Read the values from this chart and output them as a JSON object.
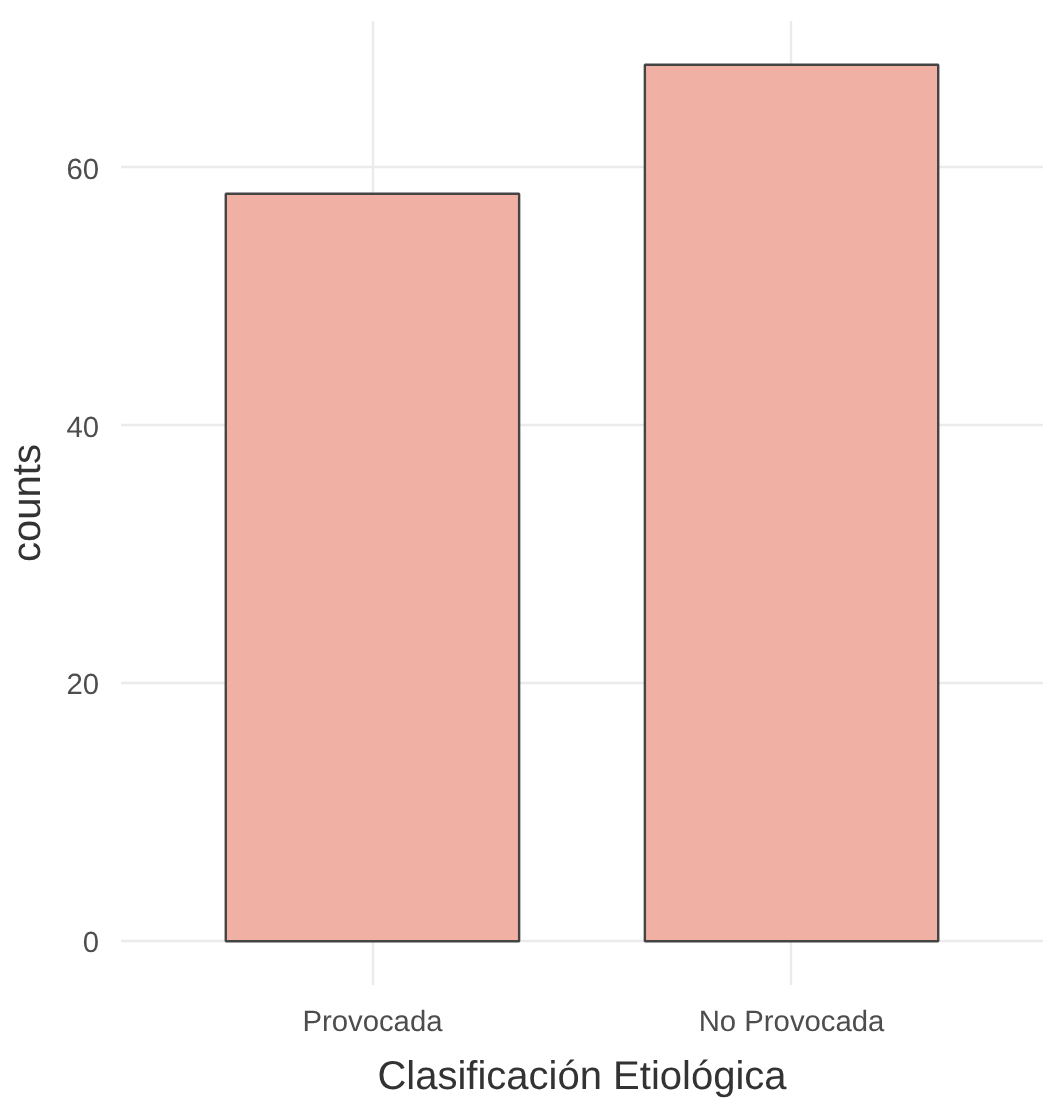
{
  "chart_data": {
    "type": "bar",
    "xlabel": "Clasificación Etiológica",
    "ylabel": "counts",
    "categories": [
      "Provocada",
      "No Provocada"
    ],
    "values": [
      58,
      68
    ],
    "color": "#f0b0a4",
    "ylim": [
      -3.4,
      71.4
    ],
    "yticks": [
      0,
      20,
      40,
      60
    ],
    "grid": true
  }
}
